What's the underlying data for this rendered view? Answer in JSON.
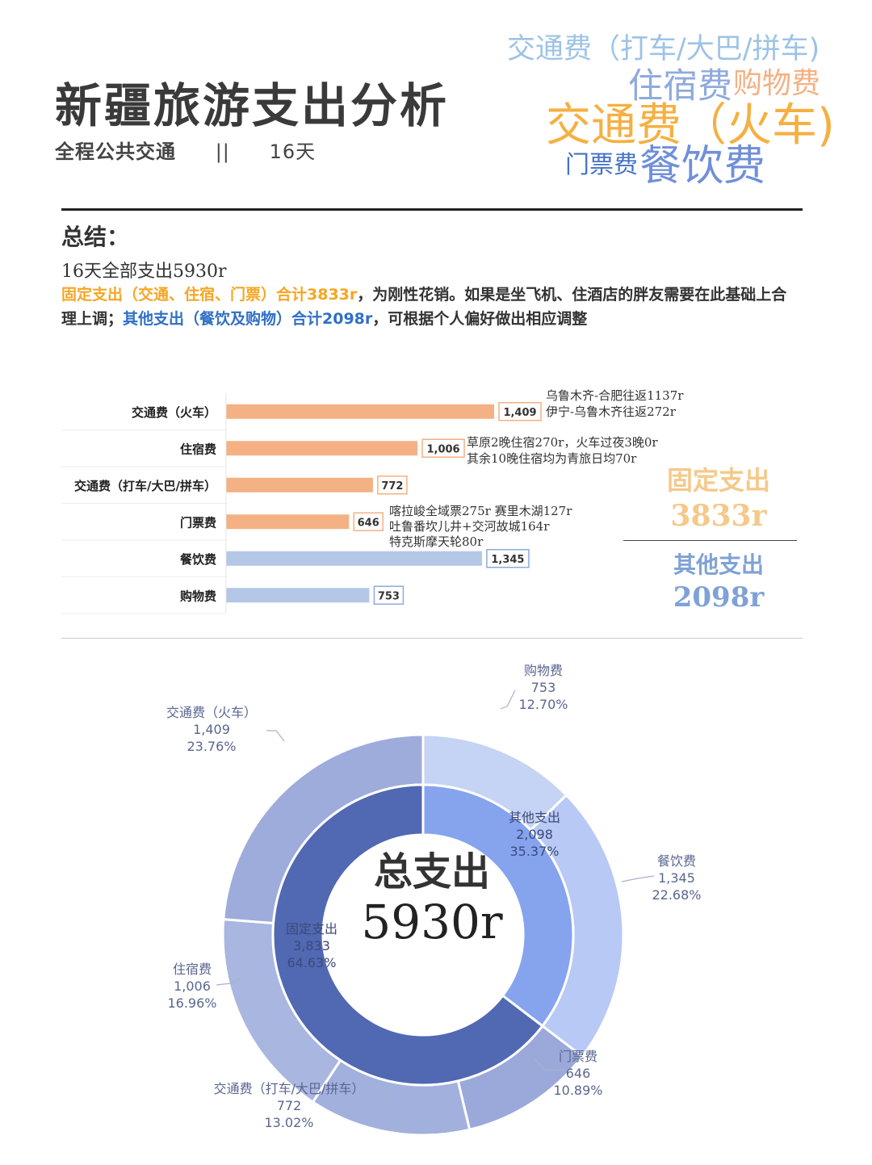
{
  "header": {
    "title": "新疆旅游支出分析",
    "subtitle_mode": "全程公共交通",
    "subtitle_sep": "||",
    "subtitle_days": "16天"
  },
  "word_cloud": [
    {
      "text": "交通费（打车/大巴/拼车)",
      "color": "#9DC3E6"
    },
    {
      "text": "住宿费",
      "color": "#8FAADC"
    },
    {
      "text": "购物费",
      "color": "#F4B183"
    },
    {
      "text": "交通费（火车)",
      "color": "#F5B041"
    },
    {
      "text": "门票费",
      "color": "#4472C4"
    },
    {
      "text": "餐饮费",
      "color": "#6F8FD8"
    }
  ],
  "summary": {
    "heading": "总结：",
    "total_line": "16天全部支出5930r",
    "fixed_text": "固定支出（交通、住宿、门票）合计3833r",
    "mid_text": "，为刚性花销。如果是坐飞机、住酒店的胖友需要在此基础上合理上调；",
    "other_text": "其他支出（餐饮及购物）合计2098r",
    "tail_text": "，可根据个人偏好做出相应调整"
  },
  "annotations": {
    "train": [
      "乌鲁木齐-合肥往返1137r",
      "伊宁-乌鲁木齐往返272r"
    ],
    "lodging": [
      "草原2晚住宿270r，火车过夜3晚0r",
      "其余10晚住宿均为青旅日均70r"
    ],
    "tickets": [
      "喀拉峻全域票275r  赛里木湖127r",
      "吐鲁番坎儿井+交河故城164r",
      "特克斯摩天轮80r"
    ]
  },
  "side_totals": {
    "fixed_label": "固定支出",
    "fixed_value": "3833r",
    "other_label": "其他支出",
    "other_value": "2098r"
  },
  "donut_center": {
    "label": "总支出",
    "value": "5930r"
  },
  "colors": {
    "fixed_bar": "#F4B183",
    "other_bar": "#B4C7E7",
    "inner_fixed": "#5168B2",
    "inner_other": "#86A3EE"
  },
  "chart_data": [
    {
      "type": "bar",
      "orientation": "horizontal",
      "categories": [
        "交通费（火车）",
        "住宿费",
        "交通费（打车/大巴/拼车）",
        "门票费",
        "餐饮费",
        "购物费"
      ],
      "values": [
        1409,
        1006,
        772,
        646,
        1345,
        753
      ],
      "value_labels": [
        "1,409",
        "1,006",
        "772",
        "646",
        "1,345",
        "753"
      ],
      "group": [
        "fixed",
        "fixed",
        "fixed",
        "fixed",
        "other",
        "other"
      ],
      "xlim": [
        0,
        2100
      ]
    },
    {
      "type": "pie",
      "style": "donut-two-ring",
      "inner": [
        {
          "name": "其他支出",
          "value": 2098,
          "value_label": "2,098",
          "percent": "35.37%"
        },
        {
          "name": "固定支出",
          "value": 3833,
          "value_label": "3,833",
          "percent": "64.63%"
        }
      ],
      "outer": [
        {
          "name": "购物费",
          "value": 753,
          "value_label": "753",
          "percent": "12.70%",
          "color": "#C5D3F4"
        },
        {
          "name": "餐饮费",
          "value": 1345,
          "value_label": "1,345",
          "percent": "22.68%",
          "color": "#B7C9F4"
        },
        {
          "name": "门票费",
          "value": 646,
          "value_label": "646",
          "percent": "10.89%",
          "color": "#9AA9D9"
        },
        {
          "name": "交通费（打车/大巴/拼车）",
          "value": 772,
          "value_label": "772",
          "percent": "13.02%",
          "color": "#A2B0DD"
        },
        {
          "name": "住宿费",
          "value": 1006,
          "value_label": "1,006",
          "percent": "16.96%",
          "color": "#A8B6E0"
        },
        {
          "name": "交通费（火车）",
          "value": 1409,
          "value_label": "1,409",
          "percent": "23.76%",
          "color": "#9EACDB"
        }
      ]
    }
  ]
}
